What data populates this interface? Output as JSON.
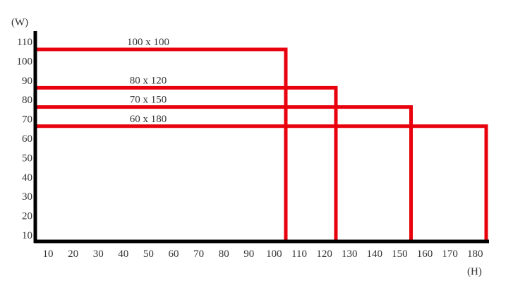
{
  "chart_data": {
    "type": "rectangles",
    "xlabel": "(H)",
    "ylabel": "(W)",
    "x_ticks": [
      10,
      20,
      30,
      40,
      50,
      60,
      70,
      80,
      90,
      100,
      110,
      120,
      130,
      140,
      150,
      160,
      170,
      180
    ],
    "y_ticks": [
      10,
      20,
      30,
      40,
      50,
      60,
      70,
      80,
      90,
      100,
      110
    ],
    "rectangles": [
      {
        "label": "100 x 100",
        "w": 100,
        "h": 100
      },
      {
        "label": "80 x 120",
        "w": 80,
        "h": 120
      },
      {
        "label": "70 x 150",
        "w": 70,
        "h": 150
      },
      {
        "label": "60 x 180",
        "w": 60,
        "h": 180
      }
    ],
    "colors": {
      "rect": "#e8000c",
      "axis": "#000000"
    }
  }
}
